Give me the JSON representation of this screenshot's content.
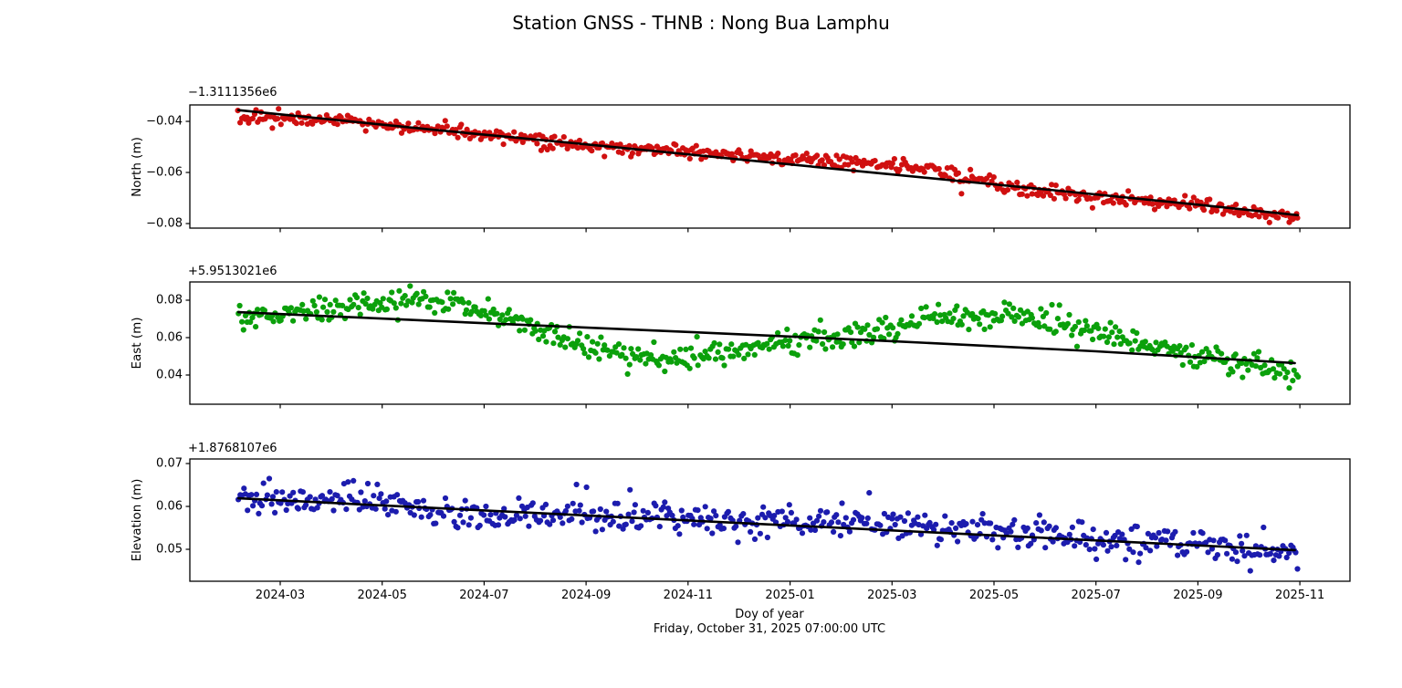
{
  "chart_data": {
    "type": "scatter",
    "suptitle": "Station GNSS - THNB : Nong Bua Lamphu",
    "xlabel": "Doy of year",
    "footer_timestamp": "Friday, October 31, 2025 07:00:00 UTC",
    "grid": false,
    "legend": "none",
    "x_axis": {
      "tick_labels": [
        "2024-03",
        "2024-05",
        "2024-07",
        "2024-09",
        "2024-11",
        "2025-01",
        "2025-03",
        "2025-05",
        "2025-07",
        "2025-09",
        "2025-11"
      ],
      "tick_t_months": [
        0,
        2,
        4,
        6,
        8,
        10,
        12,
        14,
        16,
        18,
        20
      ],
      "axis_range_t": [
        -1.772,
        20.982
      ],
      "data_range_t": [
        -0.82,
        19.96
      ]
    },
    "subplots": [
      {
        "name": "north",
        "ylabel": "North (m)",
        "offset_text": "−1.3111356e6",
        "marker_color": "#d01010",
        "trend_color": "#000000",
        "y_ticks": [
          {
            "v": -0.04,
            "label": "−0.04"
          },
          {
            "v": -0.06,
            "label": "−0.06"
          },
          {
            "v": -0.08,
            "label": "−0.08"
          }
        ],
        "ylim": [
          -0.081786,
          -0.033571
        ],
        "trend_line": [
          [
            -0.82,
            -0.0356
          ],
          [
            3,
            -0.0433
          ],
          [
            6,
            -0.049
          ],
          [
            9,
            -0.0549
          ],
          [
            12,
            -0.0608
          ],
          [
            15,
            -0.0666
          ],
          [
            18,
            -0.0726
          ],
          [
            19.96,
            -0.0767
          ]
        ],
        "mean_curve": [
          [
            -0.82,
            -0.0388
          ],
          [
            0,
            -0.0384
          ],
          [
            1,
            -0.0396
          ],
          [
            2,
            -0.0414
          ],
          [
            3,
            -0.0433
          ],
          [
            4,
            -0.0452
          ],
          [
            5,
            -0.0473
          ],
          [
            6,
            -0.0494
          ],
          [
            6.7,
            -0.0504
          ],
          [
            7.5,
            -0.0511
          ],
          [
            8.2,
            -0.0519
          ],
          [
            9,
            -0.0531
          ],
          [
            9.8,
            -0.0542
          ],
          [
            10.6,
            -0.0551
          ],
          [
            11.4,
            -0.056
          ],
          [
            12.1,
            -0.0572
          ],
          [
            12.8,
            -0.0592
          ],
          [
            13.5,
            -0.0621
          ],
          [
            14.2,
            -0.0652
          ],
          [
            15,
            -0.0668
          ],
          [
            16,
            -0.0691
          ],
          [
            17,
            -0.0712
          ],
          [
            18,
            -0.0733
          ],
          [
            19,
            -0.0756
          ],
          [
            19.96,
            -0.0778
          ]
        ],
        "scatter": {
          "n_points": 600,
          "noise_std": 0.0013,
          "outlier_prob": 0.02,
          "outlier_scale": 1.8,
          "seed": 7
        }
      },
      {
        "name": "east",
        "ylabel": "East (m)",
        "offset_text": "+5.9513021e6",
        "marker_color": "#0ba00b",
        "trend_color": "#000000",
        "y_ticks": [
          {
            "v": 0.08,
            "label": "0.08"
          },
          {
            "v": 0.06,
            "label": "0.06"
          },
          {
            "v": 0.04,
            "label": "0.04"
          }
        ],
        "ylim": [
          0.02439,
          0.089756
        ],
        "trend_line": [
          [
            -0.82,
            0.0736
          ],
          [
            4,
            0.0677
          ],
          [
            8,
            0.063
          ],
          [
            12,
            0.0581
          ],
          [
            16,
            0.0527
          ],
          [
            19.9,
            0.0464
          ]
        ],
        "mean_curve": [
          [
            -0.82,
            0.069
          ],
          [
            -0.3,
            0.0713
          ],
          [
            0.2,
            0.073
          ],
          [
            0.8,
            0.0748
          ],
          [
            1.5,
            0.0768
          ],
          [
            2.1,
            0.0797
          ],
          [
            2.6,
            0.0812
          ],
          [
            3.1,
            0.0802
          ],
          [
            3.6,
            0.0778
          ],
          [
            4.1,
            0.0742
          ],
          [
            4.6,
            0.0697
          ],
          [
            5.1,
            0.0647
          ],
          [
            5.6,
            0.0597
          ],
          [
            6.1,
            0.0552
          ],
          [
            6.6,
            0.0523
          ],
          [
            7.1,
            0.0499
          ],
          [
            7.6,
            0.0488
          ],
          [
            8.1,
            0.0498
          ],
          [
            8.6,
            0.052
          ],
          [
            9.2,
            0.0543
          ],
          [
            9.8,
            0.0563
          ],
          [
            10.4,
            0.0588
          ],
          [
            11.0,
            0.0607
          ],
          [
            11.6,
            0.063
          ],
          [
            12.2,
            0.0662
          ],
          [
            12.8,
            0.0692
          ],
          [
            13.4,
            0.0715
          ],
          [
            13.9,
            0.0726
          ],
          [
            14.4,
            0.0718
          ],
          [
            14.9,
            0.07
          ],
          [
            15.4,
            0.0672
          ],
          [
            15.9,
            0.0642
          ],
          [
            16.4,
            0.0603
          ],
          [
            16.9,
            0.0566
          ],
          [
            17.4,
            0.054
          ],
          [
            17.9,
            0.0513
          ],
          [
            18.4,
            0.0483
          ],
          [
            18.9,
            0.0458
          ],
          [
            19.4,
            0.0421
          ],
          [
            19.96,
            0.0378
          ]
        ],
        "scatter": {
          "n_points": 600,
          "noise_std": 0.003,
          "outlier_prob": 0.03,
          "outlier_scale": 2.0,
          "seed": 13
        }
      },
      {
        "name": "elevation",
        "ylabel": "Elevation (m)",
        "offset_text": "+1.8768107e6",
        "marker_color": "#1c1cae",
        "trend_color": "#000000",
        "y_ticks": [
          {
            "v": 0.07,
            "label": "0.07"
          },
          {
            "v": 0.06,
            "label": "0.06"
          },
          {
            "v": 0.05,
            "label": "0.05"
          }
        ],
        "ylim": [
          0.042553,
          0.071064
        ],
        "trend_line": [
          [
            -0.82,
            0.0619
          ],
          [
            6,
            0.0579
          ],
          [
            12,
            0.0544
          ],
          [
            19.9,
            0.0498
          ]
        ],
        "mean_curve": [
          [
            -0.82,
            0.0621
          ],
          [
            0,
            0.0617
          ],
          [
            0.8,
            0.0621
          ],
          [
            1.4,
            0.0627
          ],
          [
            2.1,
            0.0607
          ],
          [
            2.9,
            0.059
          ],
          [
            3.6,
            0.0582
          ],
          [
            4.5,
            0.058
          ],
          [
            5.4,
            0.0585
          ],
          [
            6.3,
            0.0576
          ],
          [
            7.2,
            0.0575
          ],
          [
            8.1,
            0.0571
          ],
          [
            9.0,
            0.0567
          ],
          [
            9.9,
            0.0572
          ],
          [
            10.8,
            0.0565
          ],
          [
            11.7,
            0.0561
          ],
          [
            12.5,
            0.0554
          ],
          [
            13.2,
            0.0544
          ],
          [
            14.0,
            0.0551
          ],
          [
            14.8,
            0.0537
          ],
          [
            15.7,
            0.0528
          ],
          [
            16.6,
            0.0521
          ],
          [
            17.5,
            0.0513
          ],
          [
            18.4,
            0.0501
          ],
          [
            19.2,
            0.0494
          ],
          [
            19.96,
            0.0492
          ]
        ],
        "scatter": {
          "n_points": 580,
          "noise_std": 0.0018,
          "outlier_prob": 0.04,
          "outlier_scale": 2.2,
          "seed": 21
        }
      }
    ]
  }
}
